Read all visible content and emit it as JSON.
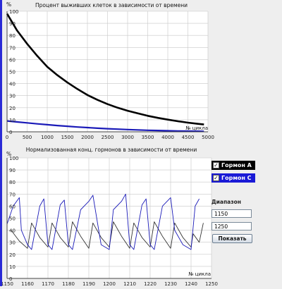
{
  "colors": {
    "background": "#eeeeee",
    "plot_background": "#ffffff",
    "grid": "#c8c8c8",
    "series_black": "#000000",
    "series_blue": "#1a1ab8",
    "series_gray": "#333333",
    "legend_a_bg": "#000000",
    "legend_c_bg": "#1a1ad6",
    "left_bar": "#2a2ad6"
  },
  "top_chart": {
    "title": "Процент выживших клеток в зависимости от времени",
    "y_unit": "%",
    "x_unit": "№ цикла"
  },
  "bottom_chart": {
    "title": "Нормализованная конц. гормонов в зависимости от времени",
    "y_unit": "%",
    "x_unit": "№ цикла"
  },
  "legend": {
    "hormone_a": {
      "label": "Гормон A",
      "checked": true,
      "check_glyph": "✓"
    },
    "hormone_c": {
      "label": "Гормон C",
      "checked": true,
      "check_glyph": "✓"
    }
  },
  "range": {
    "label": "Диапазон",
    "from_value": "1150",
    "to_value": "1250",
    "show_button_label": "Показать"
  },
  "chart_data": [
    {
      "type": "line",
      "title": "Процент выживших клеток в зависимости от времени",
      "xlabel": "№ цикла",
      "ylabel": "%",
      "xlim": [
        0,
        5000
      ],
      "ylim": [
        0,
        100
      ],
      "x_ticks": [
        0,
        500,
        1000,
        1500,
        2000,
        2500,
        3000,
        3500,
        4000,
        4500,
        5000
      ],
      "y_ticks": [
        0,
        10,
        20,
        30,
        40,
        50,
        60,
        70,
        80,
        90,
        100
      ],
      "grid": true,
      "series": [
        {
          "color": "#000000",
          "x": [
            0,
            250,
            500,
            750,
            1000,
            1250,
            1500,
            1750,
            2000,
            2250,
            2500,
            2750,
            3000,
            3250,
            3500,
            3750,
            4000,
            4250,
            4500,
            4750,
            4900
          ],
          "values": [
            98,
            84,
            73,
            63,
            54,
            47,
            41,
            35.5,
            30.5,
            26.5,
            23,
            20,
            17.5,
            15.3,
            13.3,
            11.6,
            10.1,
            8.8,
            7.6,
            6.6,
            6.1
          ]
        },
        {
          "color": "#1a1ab8",
          "x": [
            0,
            250,
            500,
            750,
            1000,
            1250,
            1500,
            1750,
            2000,
            2250,
            2500,
            2750,
            3000,
            3250,
            3500,
            3750,
            4000,
            4250,
            4500,
            4750,
            4900
          ],
          "values": [
            9,
            8.2,
            7.4,
            6.6,
            5.9,
            5.2,
            4.6,
            4.0,
            3.5,
            3.0,
            2.6,
            2.2,
            1.9,
            1.6,
            1.3,
            1.1,
            0.9,
            0.7,
            0.6,
            0.5,
            0.4
          ]
        }
      ]
    },
    {
      "type": "line",
      "title": "Нормализованная конц. гормонов в зависимости от времени",
      "xlabel": "№ цикла",
      "ylabel": "%",
      "xlim": [
        1150,
        1250
      ],
      "ylim": [
        0,
        100
      ],
      "x_ticks": [
        1150,
        1160,
        1170,
        1180,
        1190,
        1200,
        1210,
        1220,
        1230,
        1240,
        1250
      ],
      "y_ticks": [
        0,
        10,
        20,
        30,
        40,
        50,
        60,
        70,
        80,
        90,
        100
      ],
      "grid": true,
      "series": [
        {
          "name": "Гормон A",
          "color": "#333333",
          "x": [
            1152,
            1156,
            1160,
            1162,
            1166,
            1170,
            1172,
            1176,
            1180,
            1182,
            1186,
            1190,
            1192,
            1196,
            1200,
            1202,
            1206,
            1210,
            1212,
            1216,
            1220,
            1222,
            1226,
            1230,
            1232,
            1236,
            1240,
            1241,
            1244,
            1246
          ],
          "values": [
            40,
            31,
            25,
            46,
            34,
            26,
            46,
            34,
            26,
            47,
            35,
            25,
            46,
            34,
            26,
            47,
            35,
            25,
            46,
            34,
            26,
            47,
            35,
            25,
            46,
            34,
            26,
            37,
            30,
            46
          ]
        },
        {
          "name": "Гормон C",
          "color": "#1a1ab8",
          "x": [
            1150,
            1153,
            1156,
            1157,
            1160,
            1162,
            1166,
            1168,
            1170,
            1172,
            1176,
            1178,
            1180,
            1182,
            1186,
            1190,
            1192,
            1196,
            1200,
            1202,
            1206,
            1208,
            1210,
            1212,
            1216,
            1218,
            1220,
            1222,
            1226,
            1230,
            1232,
            1236,
            1240,
            1242,
            1244
          ],
          "values": [
            45,
            60,
            67,
            40,
            28,
            24,
            60,
            66,
            28,
            24,
            61,
            65,
            28,
            24,
            57,
            64,
            69,
            28,
            24,
            57,
            64,
            70,
            28,
            24,
            61,
            66,
            28,
            24,
            60,
            67,
            40,
            28,
            24,
            60,
            66
          ]
        }
      ]
    }
  ]
}
